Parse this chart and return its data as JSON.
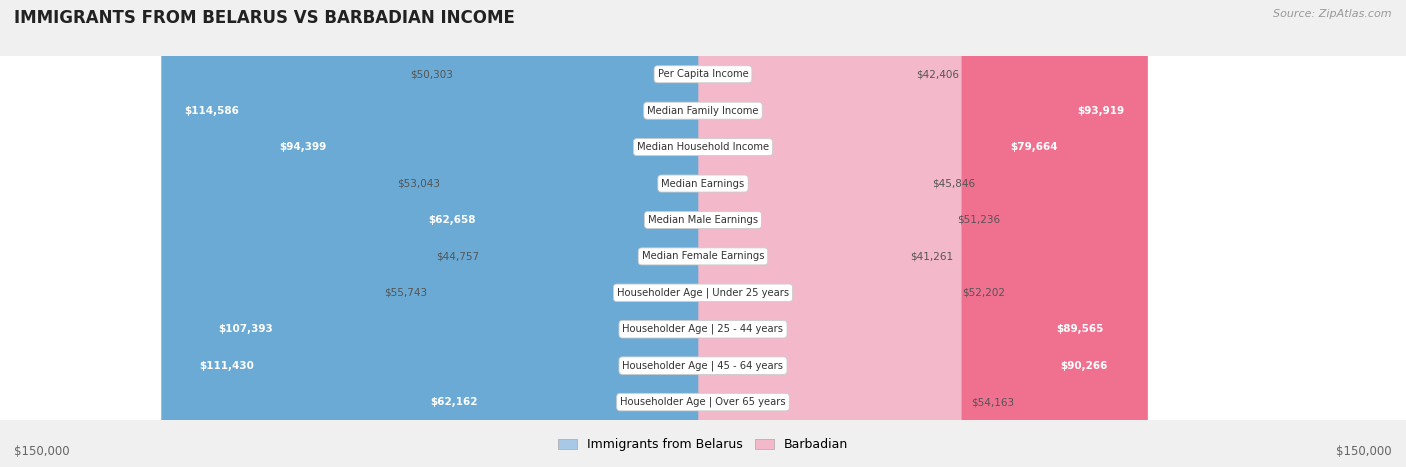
{
  "title": "IMMIGRANTS FROM BELARUS VS BARBADIAN INCOME",
  "source": "Source: ZipAtlas.com",
  "categories": [
    "Per Capita Income",
    "Median Family Income",
    "Median Household Income",
    "Median Earnings",
    "Median Male Earnings",
    "Median Female Earnings",
    "Householder Age | Under 25 years",
    "Householder Age | 25 - 44 years",
    "Householder Age | 45 - 64 years",
    "Householder Age | Over 65 years"
  ],
  "belarus_values": [
    50303,
    114586,
    94399,
    53043,
    62658,
    44757,
    55743,
    107393,
    111430,
    62162
  ],
  "barbadian_values": [
    42406,
    93919,
    79664,
    45846,
    51236,
    41261,
    52202,
    89565,
    90266,
    54163
  ],
  "belarus_labels": [
    "$50,303",
    "$114,586",
    "$94,399",
    "$53,043",
    "$62,658",
    "$44,757",
    "$55,743",
    "$107,393",
    "$111,430",
    "$62,162"
  ],
  "barbadian_labels": [
    "$42,406",
    "$93,919",
    "$79,664",
    "$45,846",
    "$51,236",
    "$41,261",
    "$52,202",
    "$89,565",
    "$90,266",
    "$54,163"
  ],
  "belarus_color_light": "#a8c8e8",
  "belarus_color_dark": "#6aaad4",
  "barbadian_color_light": "#f4b8cb",
  "barbadian_color_dark": "#f07090",
  "max_value": 150000,
  "background_color": "#f0f0f0",
  "row_bg_color": "#ffffff",
  "legend_belarus": "Immigrants from Belarus",
  "legend_barbadian": "Barbadian",
  "xlabel_left": "$150,000",
  "xlabel_right": "$150,000",
  "large_threshold": 60000,
  "medium_threshold": 30000
}
